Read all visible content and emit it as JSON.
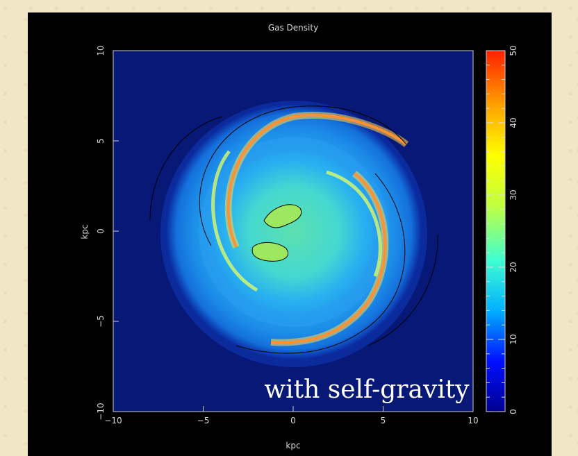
{
  "chart_data": {
    "type": "heatmap",
    "title": "Gas Density",
    "xlabel": "kpc",
    "ylabel": "kpc",
    "xlim": [
      -10,
      10
    ],
    "ylim": [
      -10,
      10
    ],
    "x_ticks": [
      -10,
      -5,
      0,
      5,
      10
    ],
    "y_ticks": [
      -10,
      -5,
      0,
      5,
      10
    ],
    "x_tick_labels": [
      "−10",
      "−5",
      "0",
      "5",
      "10"
    ],
    "y_tick_labels": [
      "−10",
      "−5",
      "0",
      "5",
      "10"
    ],
    "colorbar": {
      "range": [
        0,
        50
      ],
      "ticks": [
        0,
        10,
        20,
        30,
        40,
        50
      ],
      "tick_labels": [
        "0",
        "10",
        "20",
        "30",
        "40",
        "50"
      ],
      "colormap": "rainbow",
      "colors": [
        "#000090",
        "#0010ff",
        "#00b0ff",
        "#40ffd0",
        "#c0ff40",
        "#ffff00",
        "#ffa000",
        "#ff2000"
      ]
    },
    "background_color": "#071877",
    "disk_outer_radius_kpc": 7.3,
    "features": {
      "spiral_arms": 2,
      "central_bar_blobs": 2,
      "contours": "black"
    },
    "annotation": "with self-gravity"
  }
}
